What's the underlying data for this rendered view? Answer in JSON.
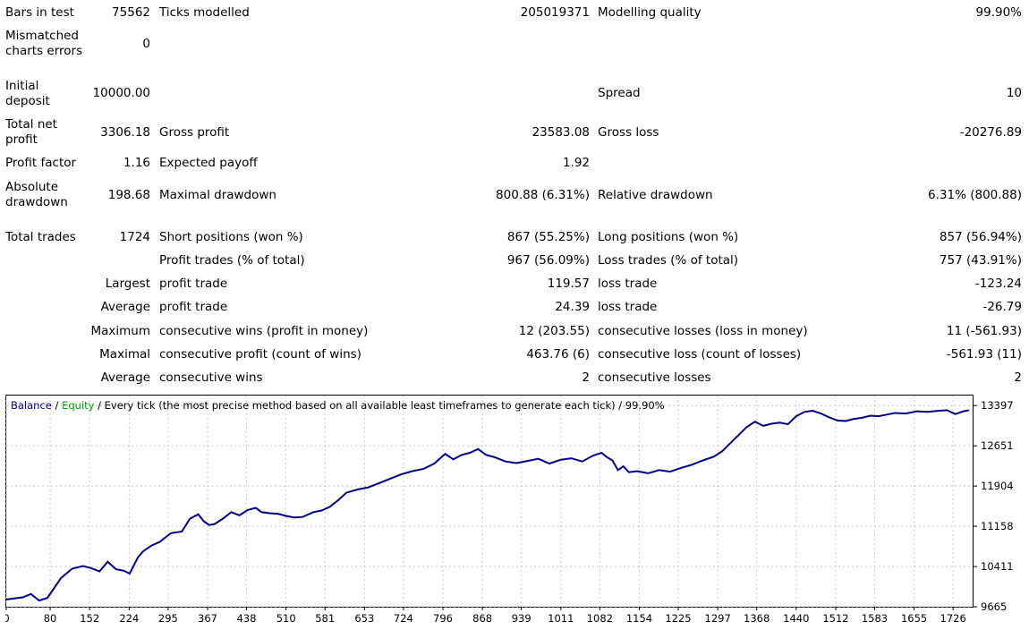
{
  "report": {
    "bars_in_test_label": "Bars in test",
    "bars_in_test_value": "75562",
    "ticks_modelled_label": "Ticks modelled",
    "ticks_modelled_value": "205019371",
    "modelling_quality_label": "Modelling quality",
    "modelling_quality_value": "99.90%",
    "mismatched_label": "Mismatched charts errors",
    "mismatched_value": "0",
    "initial_deposit_label": "Initial deposit",
    "initial_deposit_value": "10000.00",
    "spread_label": "Spread",
    "spread_value": "10",
    "total_net_profit_label": "Total net profit",
    "total_net_profit_value": "3306.18",
    "gross_profit_label": "Gross profit",
    "gross_profit_value": "23583.08",
    "gross_loss_label": "Gross loss",
    "gross_loss_value": "-20276.89",
    "profit_factor_label": "Profit factor",
    "profit_factor_value": "1.16",
    "expected_payoff_label": "Expected payoff",
    "expected_payoff_value": "1.92",
    "absolute_drawdown_label": "Absolute drawdown",
    "absolute_drawdown_value": "198.68",
    "maximal_drawdown_label": "Maximal drawdown",
    "maximal_drawdown_value": "800.88 (6.31%)",
    "relative_drawdown_label": "Relative drawdown",
    "relative_drawdown_value": "6.31% (800.88)",
    "total_trades_label": "Total trades",
    "total_trades_value": "1724",
    "short_positions_label": "Short positions (won %)",
    "short_positions_value": "867 (55.25%)",
    "long_positions_label": "Long positions (won %)",
    "long_positions_value": "857 (56.94%)",
    "profit_trades_label": "Profit trades (% of total)",
    "profit_trades_value": "967 (56.09%)",
    "loss_trades_label": "Loss trades (% of total)",
    "loss_trades_value": "757 (43.91%)",
    "largest_label": "Largest",
    "largest_profit_label": "profit trade",
    "largest_profit_value": "119.57",
    "largest_loss_label": "loss trade",
    "largest_loss_value": "-123.24",
    "average_label": "Average",
    "average_profit_label": "profit trade",
    "average_profit_value": "24.39",
    "average_loss_label": "loss trade",
    "average_loss_value": "-26.79",
    "maximum_label": "Maximum",
    "max_cons_wins_label": "consecutive wins (profit in money)",
    "max_cons_wins_value": "12 (203.55)",
    "max_cons_losses_label": "consecutive losses (loss in money)",
    "max_cons_losses_value": "11 (-561.93)",
    "maximal_label": "Maximal",
    "maximal_cons_profit_label": "consecutive profit (count of wins)",
    "maximal_cons_profit_value": "463.76 (6)",
    "maximal_cons_loss_label": "consecutive loss (count of losses)",
    "maximal_cons_loss_value": "-561.93 (11)",
    "average2_label": "Average",
    "avg_cons_wins_label": "consecutive wins",
    "avg_cons_wins_value": "2",
    "avg_cons_losses_label": "consecutive losses",
    "avg_cons_losses_value": "2"
  },
  "chart_data": {
    "type": "line",
    "title_balance": "Balance",
    "title_sep1": " / ",
    "title_equity": "Equity",
    "title_rest": " / Every tick (the most precise method based on all available least timeframes to generate each tick) / 99.90%",
    "colors": {
      "balance": "#00008b",
      "equity": "#00a000",
      "grid": "#c8c8c8",
      "axis": "#000000"
    },
    "x_ticks": [
      0,
      80,
      152,
      224,
      295,
      367,
      438,
      510,
      581,
      653,
      724,
      796,
      868,
      939,
      1011,
      1082,
      1154,
      1225,
      1297,
      1368,
      1440,
      1512,
      1583,
      1655,
      1726
    ],
    "y_ticks": [
      9665,
      10411,
      11158,
      11904,
      12651,
      13397
    ],
    "xlim": [
      0,
      1760
    ],
    "ylim": [
      9665,
      13500
    ],
    "grid": true,
    "series": [
      {
        "name": "Balance",
        "x": [
          0,
          30,
          45,
          60,
          75,
          100,
          120,
          140,
          155,
          170,
          185,
          200,
          215,
          225,
          240,
          250,
          265,
          280,
          300,
          320,
          335,
          350,
          360,
          370,
          380,
          395,
          410,
          425,
          440,
          455,
          465,
          480,
          495,
          510,
          525,
          540,
          560,
          575,
          590,
          605,
          620,
          640,
          660,
          680,
          700,
          720,
          740,
          760,
          780,
          800,
          815,
          830,
          845,
          860,
          875,
          890,
          910,
          930,
          950,
          970,
          990,
          1010,
          1030,
          1050,
          1070,
          1085,
          1095,
          1105,
          1115,
          1125,
          1135,
          1150,
          1170,
          1190,
          1210,
          1230,
          1250,
          1270,
          1290,
          1305,
          1320,
          1335,
          1350,
          1365,
          1380,
          1395,
          1410,
          1425,
          1440,
          1455,
          1470,
          1485,
          1500,
          1515,
          1530,
          1545,
          1560,
          1575,
          1590,
          1605,
          1620,
          1640,
          1660,
          1680,
          1700,
          1715,
          1730,
          1745,
          1755
        ],
        "y": [
          9800,
          9840,
          9900,
          9780,
          9830,
          10200,
          10370,
          10420,
          10380,
          10320,
          10500,
          10360,
          10330,
          10280,
          10580,
          10700,
          10800,
          10870,
          11030,
          11060,
          11300,
          11380,
          11250,
          11180,
          11200,
          11300,
          11420,
          11360,
          11460,
          11500,
          11420,
          11400,
          11390,
          11350,
          11320,
          11330,
          11420,
          11450,
          11520,
          11640,
          11780,
          11840,
          11880,
          11960,
          12040,
          12120,
          12180,
          12220,
          12320,
          12500,
          12400,
          12480,
          12520,
          12590,
          12480,
          12440,
          12360,
          12330,
          12370,
          12410,
          12320,
          12390,
          12420,
          12360,
          12470,
          12520,
          12440,
          12380,
          12200,
          12270,
          12160,
          12180,
          12140,
          12200,
          12170,
          12240,
          12300,
          12380,
          12450,
          12550,
          12700,
          12850,
          13000,
          13100,
          13020,
          13060,
          13080,
          13050,
          13200,
          13280,
          13300,
          13250,
          13180,
          13120,
          13110,
          13150,
          13170,
          13210,
          13200,
          13230,
          13260,
          13250,
          13290,
          13280,
          13300,
          13310,
          13240,
          13290,
          13310
        ]
      }
    ]
  }
}
